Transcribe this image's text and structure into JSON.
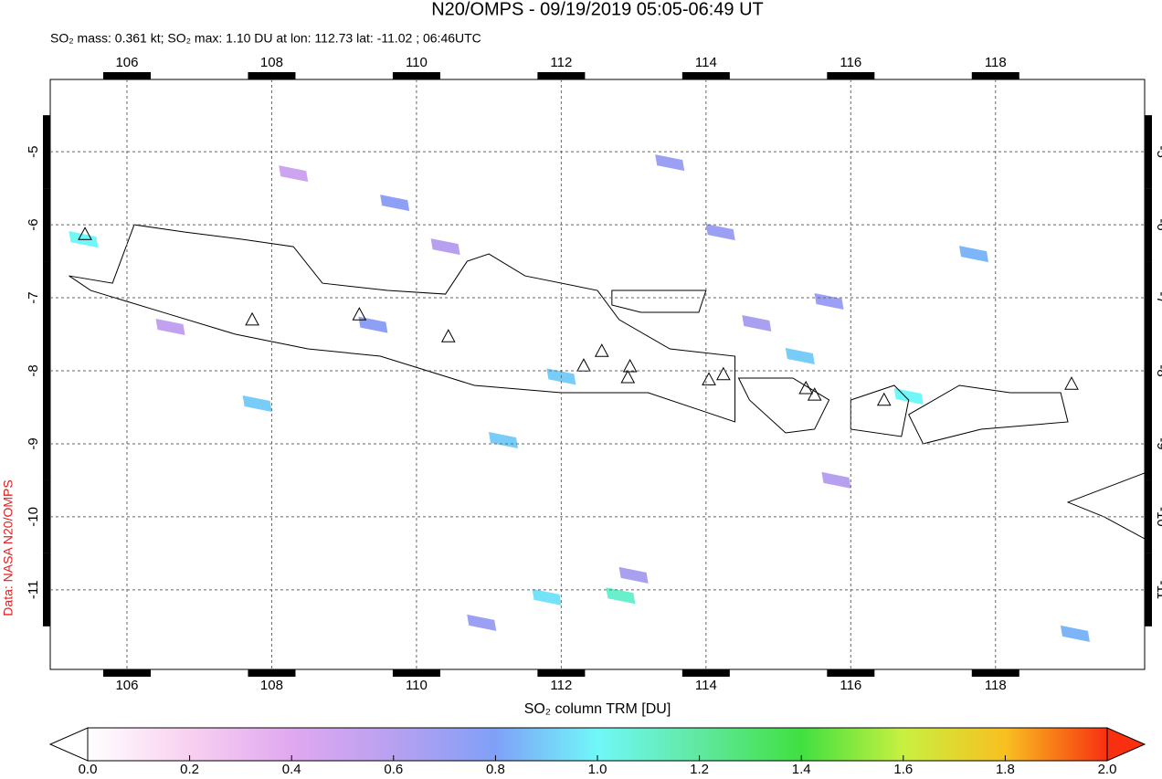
{
  "chart_data": {
    "type": "map",
    "title": "N20/OMPS - 09/19/2019 05:05-06:49 UT",
    "subtitle": "SO₂ mass: 0.361 kt; SO₂ max: 1.10 DU at lon: 112.73 lat: -11.02 ; 06:46UTC",
    "side_label": "Data: NASA N20/OMPS",
    "colorbar_label": "SO₂ column TRM [DU]",
    "xlim": [
      104.94,
      120.06
    ],
    "ylim": [
      -12.09,
      -4.01
    ],
    "xticks": [
      106,
      108,
      110,
      112,
      114,
      116,
      118
    ],
    "yticks": [
      -5,
      -6,
      -7,
      -8,
      -9,
      -10,
      -11
    ],
    "grid": true,
    "colorbar_lim": [
      0,
      2
    ],
    "colorbar_ticks": [
      {
        "value": 0,
        "label": "0.0"
      },
      {
        "value": 0.2,
        "label": "0.2"
      },
      {
        "value": 0.4,
        "label": "0.4"
      },
      {
        "value": 0.6,
        "label": "0.6"
      },
      {
        "value": 0.8,
        "label": "0.8"
      },
      {
        "value": 1,
        "label": "1.0"
      },
      {
        "value": 1.2,
        "label": "1.2"
      },
      {
        "value": 1.4,
        "label": "1.4"
      },
      {
        "value": 1.6,
        "label": "1.6"
      },
      {
        "value": 1.8,
        "label": "1.8"
      },
      {
        "value": 2,
        "label": "2.0"
      }
    ],
    "colorbar_colors": [
      "#ffffff",
      "#f8d0f0",
      "#e0a8f0",
      "#b8a0f0",
      "#80a0f8",
      "#70f8f8",
      "#60e8a0",
      "#40e040",
      "#c8f040",
      "#f8c020",
      "#f83010"
    ],
    "pixels": {
      "lon": [
        105.4,
        107.8,
        109.4,
        109.7,
        110.9,
        111.2,
        111.8,
        112.82,
        112.0,
        113.5,
        114.2,
        115.7,
        115.3,
        116.8,
        119.1,
        114.7,
        106.6,
        117.7,
        115.8,
        113.0,
        110.4,
        108.3
      ],
      "lat": [
        -6.2,
        -8.45,
        -7.37,
        -5.7,
        -11.45,
        -8.95,
        -11.1,
        -11.08,
        -8.08,
        -5.15,
        -6.1,
        -7.05,
        -7.8,
        -8.35,
        -11.6,
        -7.35,
        -7.4,
        -6.4,
        -9.5,
        -10.8,
        -6.3,
        -5.3
      ],
      "values": [
        1.0,
        0.9,
        0.75,
        0.75,
        0.7,
        0.9,
        0.95,
        1.1,
        0.9,
        0.7,
        0.7,
        0.7,
        0.9,
        1.0,
        0.85,
        0.65,
        0.55,
        0.85,
        0.6,
        0.65,
        0.6,
        0.5
      ]
    },
    "volcanoes": {
      "lon": [
        105.42,
        107.73,
        109.21,
        110.44,
        112.31,
        112.56,
        112.95,
        112.92,
        114.04,
        114.24,
        115.38,
        115.5,
        116.46,
        119.05
      ],
      "lat": [
        -6.14,
        -7.31,
        -7.24,
        -7.54,
        -7.94,
        -7.74,
        -7.95,
        -8.1,
        -8.13,
        -8.06,
        -8.25,
        -8.34,
        -8.41,
        -8.19
      ]
    }
  }
}
